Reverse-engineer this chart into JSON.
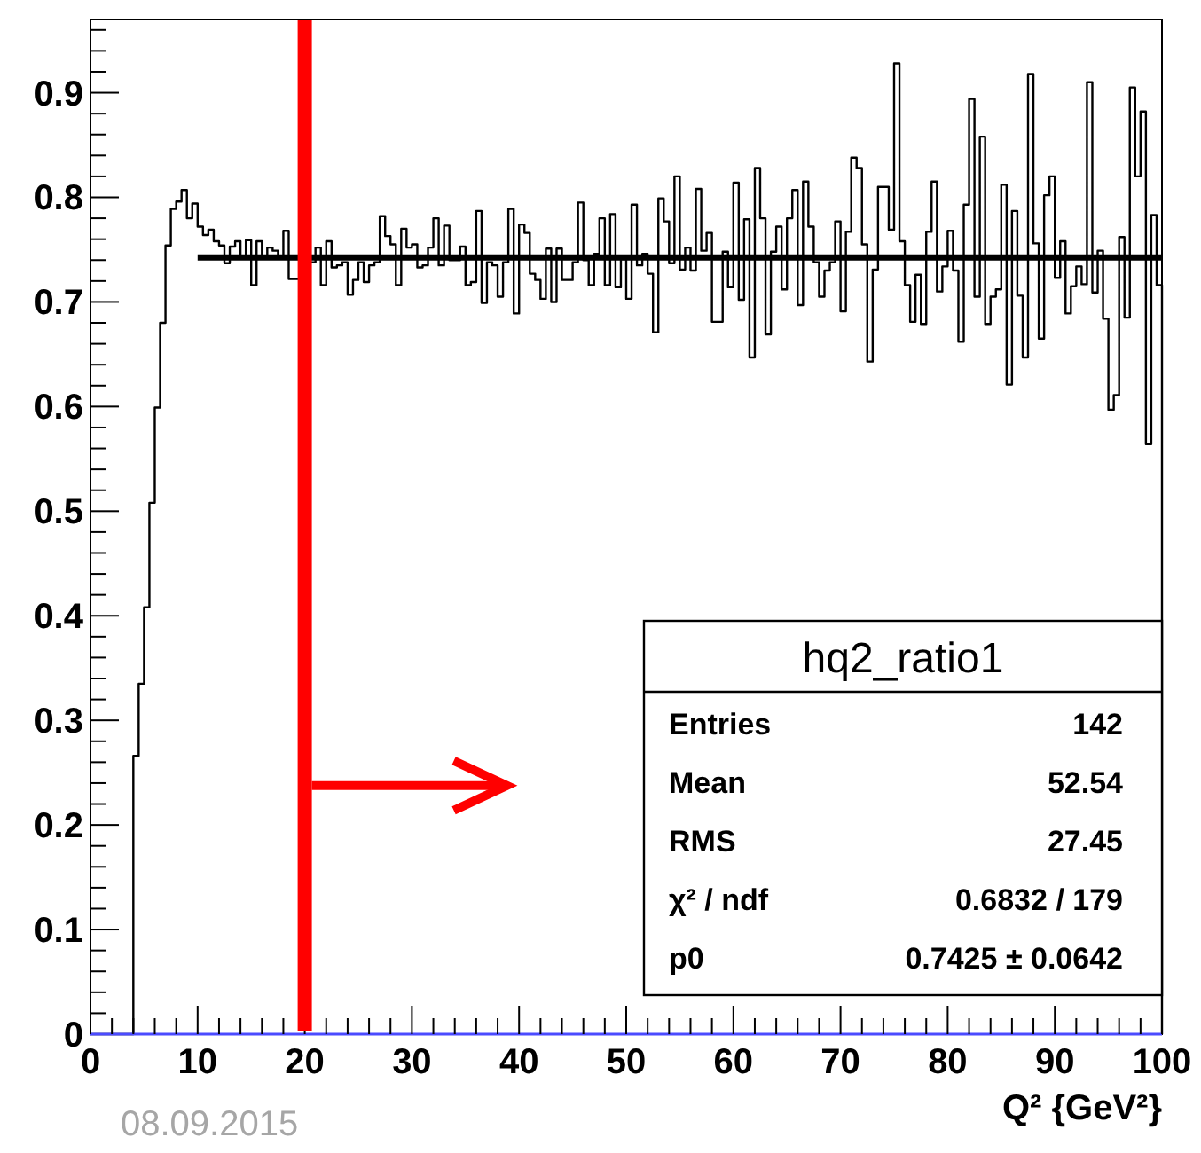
{
  "chart_data": {
    "type": "histogram",
    "xlabel": "Q² {GeV²}",
    "bins": [
      0,
      0.5,
      1,
      1.5,
      2,
      2.5,
      3,
      3.5,
      4,
      4.5,
      5,
      5.5,
      6,
      6.5,
      7,
      7.5,
      8,
      8.5,
      9,
      9.5,
      10,
      10.5,
      11,
      11.5,
      12,
      12.5,
      13,
      13.5,
      14,
      14.5,
      15,
      15.5,
      16,
      16.5,
      17,
      17.5,
      18,
      18.5,
      19,
      19.5,
      20,
      20.5,
      21,
      21.5,
      22,
      22.5,
      23,
      23.5,
      24,
      24.5,
      25,
      25.5,
      26,
      26.5,
      27,
      27.5,
      28,
      28.5,
      29,
      29.5,
      30,
      30.5,
      31,
      31.5,
      32,
      32.5,
      33,
      33.5,
      34,
      34.5,
      35,
      35.5,
      36,
      36.5,
      37,
      37.5,
      38,
      38.5,
      39,
      39.5,
      40,
      40.5,
      41,
      41.5,
      42,
      42.5,
      43,
      43.5,
      44,
      44.5,
      45,
      45.5,
      46,
      46.5,
      47,
      47.5,
      48,
      48.5,
      49,
      49.5,
      50,
      50.5,
      51,
      51.5,
      52,
      52.5,
      53,
      53.5,
      54,
      54.5,
      55,
      55.5,
      56,
      56.5,
      57,
      57.5,
      58,
      58.5,
      59,
      59.5,
      60,
      60.5,
      61,
      61.5,
      62,
      62.5,
      63,
      63.5,
      64,
      64.5,
      65,
      65.5,
      66,
      66.5,
      67,
      67.5,
      68,
      68.5,
      69,
      69.5,
      70,
      70.5,
      71,
      71.5,
      72,
      72.5,
      73,
      73.5,
      74,
      74.5,
      75,
      75.5,
      76,
      76.5,
      77,
      77.5,
      78,
      78.5,
      79,
      79.5,
      80,
      80.5,
      81,
      81.5,
      82,
      82.5,
      83,
      83.5,
      84,
      84.5,
      85,
      85.5,
      86,
      86.5,
      87,
      87.5,
      88,
      88.5,
      89,
      89.5,
      90,
      90.5,
      91,
      91.5,
      92,
      92.5,
      93,
      93.5,
      94,
      94.5,
      95,
      95.5,
      96,
      96.5,
      97,
      97.5,
      98,
      98.5,
      99,
      99.5,
      100
    ],
    "series": [
      {
        "color": "#000000",
        "values": [
          0,
          0,
          0,
          0,
          0,
          0,
          0,
          0,
          0.266,
          0.335,
          0.408,
          0.508,
          0.599,
          0.68,
          0.754,
          0.789,
          0.796,
          0.807,
          0.78,
          0.794,
          0.772,
          0.764,
          0.769,
          0.758,
          0.754,
          0.737,
          0.753,
          0.758,
          0.744,
          0.759,
          0.716,
          0.758,
          0.744,
          0.752,
          0.749,
          0.744,
          0.768,
          0.722,
          0.722,
          0.745,
          0.738,
          0.738,
          0.752,
          0.716,
          0.758,
          0.733,
          0.735,
          0.738,
          0.707,
          0.721,
          0.738,
          0.719,
          0.735,
          0.738,
          0.782,
          0.763,
          0.755,
          0.716,
          0.77,
          0.752,
          0.755,
          0.733,
          0.735,
          0.752,
          0.78,
          0.735,
          0.773,
          0.74,
          0.74,
          0.753,
          0.716,
          0.719,
          0.787,
          0.699,
          0.738,
          0.735,
          0.705,
          0.738,
          0.789,
          0.689,
          0.774,
          0.766,
          0.727,
          0.721,
          0.703,
          0.751,
          0.7,
          0.751,
          0.721,
          0.721,
          0.738,
          0.795,
          0.74,
          0.716,
          0.746,
          0.78,
          0.716,
          0.784,
          0.714,
          0.741,
          0.703,
          0.793,
          0.735,
          0.746,
          0.727,
          0.671,
          0.799,
          0.777,
          0.737,
          0.82,
          0.731,
          0.752,
          0.73,
          0.808,
          0.749,
          0.766,
          0.681,
          0.681,
          0.748,
          0.714,
          0.814,
          0.702,
          0.779,
          0.647,
          0.828,
          0.78,
          0.669,
          0.748,
          0.772,
          0.712,
          0.78,
          0.807,
          0.697,
          0.815,
          0.772,
          0.738,
          0.705,
          0.73,
          0.738,
          0.777,
          0.691,
          0.767,
          0.838,
          0.828,
          0.755,
          0.643,
          0.731,
          0.81,
          0.81,
          0.769,
          0.928,
          0.758,
          0.716,
          0.681,
          0.726,
          0.679,
          0.767,
          0.815,
          0.71,
          0.734,
          0.768,
          0.73,
          0.662,
          0.793,
          0.894,
          0.705,
          0.858,
          0.679,
          0.705,
          0.712,
          0.812,
          0.621,
          0.787,
          0.706,
          0.647,
          0.918,
          0.756,
          0.665,
          0.802,
          0.82,
          0.723,
          0.758,
          0.689,
          0.715,
          0.734,
          0.717,
          0.91,
          0.709,
          0.749,
          0.684,
          0.597,
          0.611,
          0.762,
          0.685,
          0.905,
          0.82,
          0.882,
          0.564,
          0.783,
          0.716
        ]
      },
      {
        "type": "line",
        "color": "#000000",
        "x": [
          10,
          100
        ],
        "values": [
          0.7425,
          0.7425
        ]
      }
    ],
    "xlim": [
      0,
      100
    ],
    "ylim": [
      0,
      0.97
    ],
    "xticks": [
      0,
      {
        "value": 2,
        "label": null
      },
      {
        "value": 4,
        "label": null
      },
      {
        "value": 6,
        "label": null
      },
      {
        "value": 8,
        "label": null
      },
      10,
      {
        "value": 12,
        "label": null
      },
      {
        "value": 14,
        "label": null
      },
      {
        "value": 16,
        "label": null
      },
      {
        "value": 18,
        "label": null
      },
      20,
      {
        "value": 22,
        "label": null
      },
      {
        "value": 24,
        "label": null
      },
      {
        "value": 26,
        "label": null
      },
      {
        "value": 28,
        "label": null
      },
      30,
      {
        "value": 32,
        "label": null
      },
      {
        "value": 34,
        "label": null
      },
      {
        "value": 36,
        "label": null
      },
      {
        "value": 38,
        "label": null
      },
      40,
      {
        "value": 42,
        "label": null
      },
      {
        "value": 44,
        "label": null
      },
      {
        "value": 46,
        "label": null
      },
      {
        "value": 48,
        "label": null
      },
      50,
      {
        "value": 52,
        "label": null
      },
      {
        "value": 54,
        "label": null
      },
      {
        "value": 56,
        "label": null
      },
      {
        "value": 58,
        "label": null
      },
      60,
      {
        "value": 62,
        "label": null
      },
      {
        "value": 64,
        "label": null
      },
      {
        "value": 66,
        "label": null
      },
      {
        "value": 68,
        "label": null
      },
      70,
      {
        "value": 72,
        "label": null
      },
      {
        "value": 74,
        "label": null
      },
      {
        "value": 76,
        "label": null
      },
      {
        "value": 78,
        "label": null
      },
      80,
      {
        "value": 82,
        "label": null
      },
      {
        "value": 84,
        "label": null
      },
      {
        "value": 86,
        "label": null
      },
      {
        "value": 88,
        "label": null
      },
      90,
      {
        "value": 92,
        "label": null
      },
      {
        "value": 94,
        "label": null
      },
      {
        "value": 96,
        "label": null
      },
      {
        "value": 98,
        "label": null
      },
      100
    ],
    "yticks": [
      0,
      {
        "value": 0.02,
        "label": null
      },
      {
        "value": 0.04,
        "label": null
      },
      {
        "value": 0.06,
        "label": null
      },
      {
        "value": 0.08,
        "label": null
      },
      0.1,
      {
        "value": 0.12,
        "label": null
      },
      {
        "value": 0.14,
        "label": null
      },
      {
        "value": 0.16,
        "label": null
      },
      {
        "value": 0.18,
        "label": null
      },
      0.2,
      {
        "value": 0.22,
        "label": null
      },
      {
        "value": 0.24,
        "label": null
      },
      {
        "value": 0.26,
        "label": null
      },
      {
        "value": 0.28,
        "label": null
      },
      0.3,
      {
        "value": 0.32,
        "label": null
      },
      {
        "value": 0.34,
        "label": null
      },
      {
        "value": 0.36,
        "label": null
      },
      {
        "value": 0.38,
        "label": null
      },
      0.4,
      {
        "value": 0.42,
        "label": null
      },
      {
        "value": 0.44,
        "label": null
      },
      {
        "value": 0.46,
        "label": null
      },
      {
        "value": 0.48,
        "label": null
      },
      0.5,
      {
        "value": 0.52,
        "label": null
      },
      {
        "value": 0.54,
        "label": null
      },
      {
        "value": 0.56,
        "label": null
      },
      {
        "value": 0.58,
        "label": null
      },
      0.6,
      {
        "value": 0.62,
        "label": null
      },
      {
        "value": 0.64,
        "label": null
      },
      {
        "value": 0.66,
        "label": null
      },
      {
        "value": 0.68,
        "label": null
      },
      0.7,
      {
        "value": 0.72,
        "label": null
      },
      {
        "value": 0.74,
        "label": null
      },
      {
        "value": 0.76,
        "label": null
      },
      {
        "value": 0.78,
        "label": null
      },
      0.8,
      {
        "value": 0.82,
        "label": null
      },
      {
        "value": 0.84,
        "label": null
      },
      {
        "value": 0.86,
        "label": null
      },
      {
        "value": 0.88,
        "label": null
      },
      0.9,
      {
        "value": 0.92,
        "label": null
      },
      {
        "value": 0.94,
        "label": null
      },
      {
        "value": 0.96,
        "label": null
      }
    ],
    "ref_lines": [
      {
        "axis": "x",
        "value": 20,
        "color": "#ff0000"
      }
    ],
    "annotations": [
      "hq2_ratio1",
      "Entries",
      "142",
      "Mean",
      "52.54",
      "RMS",
      "27.45",
      "χ² / ndf",
      "0.6832 / 179",
      "p0",
      "0.7425 ± 0.0642",
      "08.09.2015"
    ],
    "grid": false
  }
}
